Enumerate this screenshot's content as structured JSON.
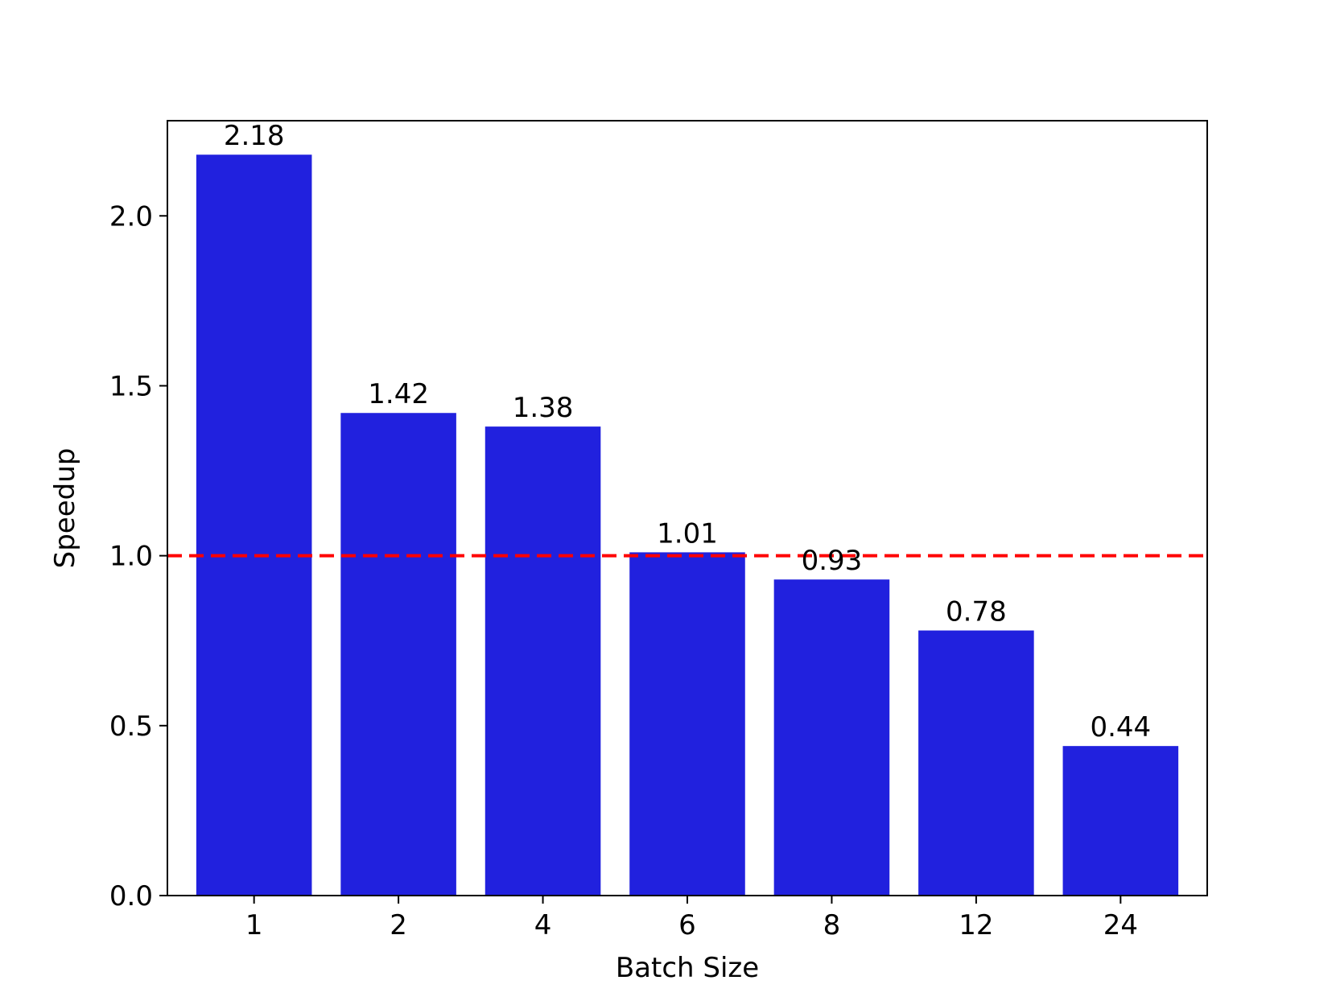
{
  "chart_data": {
    "type": "bar",
    "title": "",
    "xlabel": "Batch Size",
    "ylabel": "Speedup",
    "categories": [
      "1",
      "2",
      "4",
      "6",
      "8",
      "12",
      "24"
    ],
    "values": [
      2.18,
      1.42,
      1.38,
      1.01,
      0.93,
      0.78,
      0.44
    ],
    "data_labels": [
      "2.18",
      "1.42",
      "1.38",
      "1.01",
      "0.93",
      "0.78",
      "0.44"
    ],
    "ylim": [
      0,
      2.28
    ],
    "yticks": [
      0.0,
      0.5,
      1.0,
      1.5,
      2.0
    ],
    "ytick_labels": [
      "0.0",
      "0.5",
      "1.0",
      "1.5",
      "2.0"
    ],
    "reference_line": {
      "y": 1.0,
      "style": "dashed",
      "color": "#ff0000"
    },
    "bar_color": "#2121de",
    "grid": false,
    "legend": "none"
  }
}
